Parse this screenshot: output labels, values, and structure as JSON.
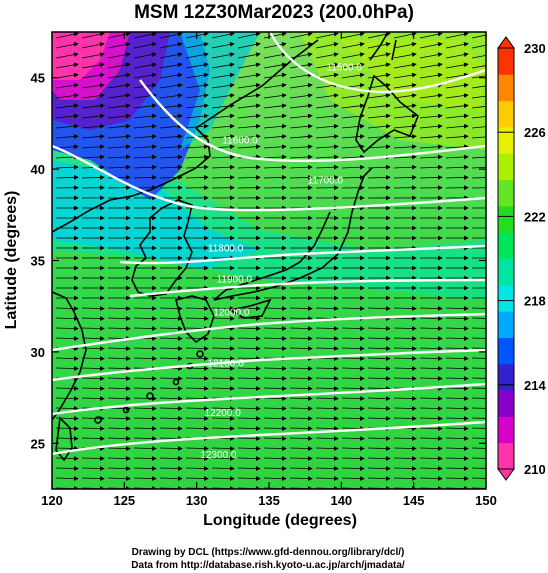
{
  "title": "MSM 12Z30Mar2023 (200.0hPa)",
  "credits": {
    "line1": "Drawing by DCL (https://www.gfd-dennou.org/library/dcl/)",
    "line2": "Data from http://database.rish.kyoto-u.ac.jp/arch/jmadata/"
  },
  "map": {
    "xlabel": "Longitude (degrees)",
    "ylabel": "Latitude  (degrees)",
    "lon_range": [
      120,
      150
    ],
    "lat_range": [
      22.5,
      47.5
    ],
    "lon_ticks": [
      "120",
      "125",
      "130",
      "135",
      "140",
      "145",
      "150"
    ],
    "lat_ticks": [
      "25",
      "30",
      "35",
      "40",
      "45"
    ],
    "contour_labels": [
      {
        "text": "11500.0",
        "lon": 140.2,
        "lat": 45.4
      },
      {
        "text": "11600.0",
        "lon": 133.0,
        "lat": 41.4
      },
      {
        "text": "11700.0",
        "lon": 138.9,
        "lat": 39.2
      },
      {
        "text": "11800.0",
        "lon": 132.0,
        "lat": 35.5
      },
      {
        "text": "11900.0",
        "lon": 132.6,
        "lat": 33.8
      },
      {
        "text": "12000.0",
        "lon": 132.4,
        "lat": 32.0
      },
      {
        "text": "12100.0",
        "lon": 132.0,
        "lat": 29.2
      },
      {
        "text": "12200.0",
        "lon": 131.8,
        "lat": 26.5
      },
      {
        "text": "12300.0",
        "lon": 131.5,
        "lat": 24.2
      }
    ]
  },
  "colorbar": {
    "min": 210,
    "max": 230,
    "tick_labels": [
      "210",
      "214",
      "218",
      "222",
      "226",
      "230"
    ],
    "colors": [
      "#ff33aa",
      "#d900cc",
      "#8800cc",
      "#3322cc",
      "#0055ff",
      "#00aaff",
      "#00e6e6",
      "#00e6a0",
      "#00e65a",
      "#22dd22",
      "#66e622",
      "#aaf000",
      "#e6f000",
      "#ffcc00",
      "#ff8800",
      "#ff3300"
    ]
  }
}
